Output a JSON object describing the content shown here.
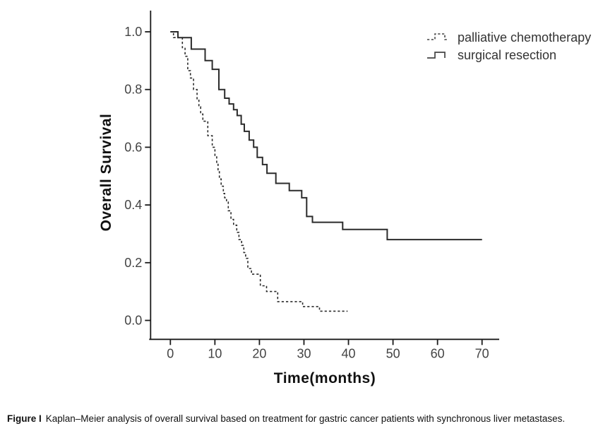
{
  "chart_data": {
    "type": "line",
    "subtype": "kaplan-meier-step",
    "title": "",
    "xlabel": "Time(months)",
    "ylabel": "Overall Survival",
    "xlim": [
      0,
      70
    ],
    "ylim": [
      0.0,
      1.0
    ],
    "grid": false,
    "legend_position": "top-right",
    "x_ticks": [
      {
        "value": 0,
        "label": "0"
      },
      {
        "value": 10,
        "label": "10"
      },
      {
        "value": 20,
        "label": "20"
      },
      {
        "value": 30,
        "label": "30"
      },
      {
        "value": 40,
        "label": "40"
      },
      {
        "value": 50,
        "label": "50"
      },
      {
        "value": 60,
        "label": "60"
      },
      {
        "value": 70,
        "label": "70"
      }
    ],
    "y_ticks": [
      {
        "value": 0.0,
        "label": "0.0"
      },
      {
        "value": 0.2,
        "label": "0.2"
      },
      {
        "value": 0.4,
        "label": "0.4"
      },
      {
        "value": 0.6,
        "label": "0.6"
      },
      {
        "value": 0.8,
        "label": "0.8"
      },
      {
        "value": 1.0,
        "label": "1.0"
      }
    ],
    "series": [
      {
        "name": "palliative chemotherapy",
        "style": "dashed",
        "color": "#2b2b2b",
        "points": [
          [
            0,
            1.0
          ],
          [
            0.7,
            0.98
          ],
          [
            2.7,
            0.945
          ],
          [
            3.3,
            0.915
          ],
          [
            3.9,
            0.865
          ],
          [
            4.5,
            0.84
          ],
          [
            5.2,
            0.8
          ],
          [
            6.0,
            0.765
          ],
          [
            6.4,
            0.74
          ],
          [
            6.8,
            0.715
          ],
          [
            7.3,
            0.69
          ],
          [
            8.4,
            0.64
          ],
          [
            9.4,
            0.6
          ],
          [
            10.0,
            0.57
          ],
          [
            10.4,
            0.545
          ],
          [
            10.7,
            0.515
          ],
          [
            11.0,
            0.49
          ],
          [
            11.4,
            0.465
          ],
          [
            11.9,
            0.44
          ],
          [
            12.2,
            0.425
          ],
          [
            12.6,
            0.41
          ],
          [
            13.0,
            0.38
          ],
          [
            13.6,
            0.35
          ],
          [
            14.2,
            0.33
          ],
          [
            14.9,
            0.305
          ],
          [
            15.4,
            0.28
          ],
          [
            16.0,
            0.26
          ],
          [
            16.5,
            0.235
          ],
          [
            16.9,
            0.215
          ],
          [
            17.4,
            0.18
          ],
          [
            18.2,
            0.16
          ],
          [
            20.2,
            0.12
          ],
          [
            21.6,
            0.1
          ],
          [
            24.1,
            0.065
          ],
          [
            29.7,
            0.048
          ],
          [
            33.5,
            0.032
          ],
          [
            39.8,
            0.032
          ]
        ]
      },
      {
        "name": "surgical resection",
        "style": "solid",
        "color": "#2b2b2b",
        "points": [
          [
            0,
            1.0
          ],
          [
            1.7,
            0.98
          ],
          [
            4.7,
            0.94
          ],
          [
            7.8,
            0.9
          ],
          [
            9.4,
            0.87
          ],
          [
            10.9,
            0.8
          ],
          [
            12.2,
            0.77
          ],
          [
            13.2,
            0.75
          ],
          [
            14.2,
            0.73
          ],
          [
            15.0,
            0.71
          ],
          [
            15.9,
            0.68
          ],
          [
            16.6,
            0.655
          ],
          [
            17.7,
            0.625
          ],
          [
            18.7,
            0.6
          ],
          [
            19.5,
            0.565
          ],
          [
            20.7,
            0.54
          ],
          [
            21.7,
            0.51
          ],
          [
            23.7,
            0.475
          ],
          [
            26.7,
            0.45
          ],
          [
            29.5,
            0.425
          ],
          [
            30.6,
            0.36
          ],
          [
            31.9,
            0.34
          ],
          [
            38.7,
            0.315
          ],
          [
            48.7,
            0.28
          ],
          [
            70,
            0.28
          ]
        ]
      }
    ]
  },
  "caption": {
    "prefix": "Figure I",
    "body": "Kaplan–Meier analysis of overall survival based on treatment for gastric cancer patients with synchronous liver metastases."
  },
  "colors": {
    "axis": "#1a1a1a",
    "tick_label": "#444444",
    "curve": "#2b2b2b",
    "legend_text": "#333333"
  }
}
